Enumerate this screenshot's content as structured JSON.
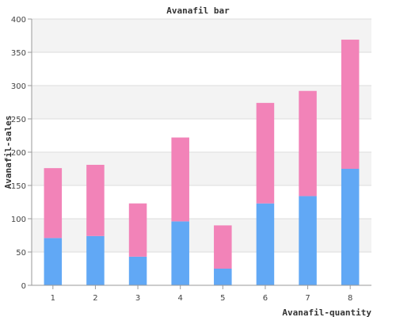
{
  "chart_data": {
    "type": "bar",
    "stacked": true,
    "title": "Avanafil bar",
    "xlabel": "Avanafil-quantity",
    "ylabel": "Avanafil-sales",
    "categories": [
      "1",
      "2",
      "3",
      "4",
      "5",
      "6",
      "7",
      "8"
    ],
    "series": [
      {
        "color": "#61a8f5",
        "values": [
          71,
          74,
          43,
          96,
          25,
          123,
          134,
          175
        ]
      },
      {
        "color": "#f283b8",
        "values": [
          105,
          107,
          80,
          126,
          65,
          151,
          158,
          194
        ]
      }
    ],
    "ylim": [
      0,
      400
    ],
    "yticks": [
      "0",
      "50",
      "100",
      "150",
      "200",
      "250",
      "300",
      "350",
      "400"
    ],
    "grid": true,
    "legend": "none"
  }
}
